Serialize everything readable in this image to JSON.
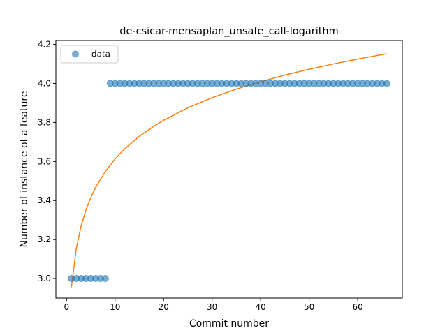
{
  "chart_data": {
    "type": "scatter",
    "title": "de-csicar-mensaplan_unsafe_call-logarithm",
    "xlabel": "Commit number",
    "ylabel": "Number of instance of a feature",
    "xlim": [
      -2.2,
      69.2
    ],
    "ylim": [
      2.9,
      4.22
    ],
    "xticks": [
      0,
      10,
      20,
      30,
      40,
      50,
      60
    ],
    "yticks": [
      3.0,
      3.2,
      3.4,
      3.6,
      3.8,
      4.0,
      4.2
    ],
    "grid": false,
    "legend": {
      "placement": "top-left",
      "entries": [
        "data"
      ]
    },
    "colors": {
      "data": "#1f77b4",
      "fit": "#ff7f0e"
    },
    "series": [
      {
        "name": "data",
        "kind": "scatter",
        "x": [
          1,
          2,
          3,
          4,
          5,
          6,
          7,
          8,
          9,
          10,
          11,
          12,
          13,
          14,
          15,
          16,
          17,
          18,
          19,
          20,
          21,
          22,
          23,
          24,
          25,
          26,
          27,
          28,
          29,
          30,
          31,
          32,
          33,
          34,
          35,
          36,
          37,
          38,
          39,
          40,
          41,
          42,
          43,
          44,
          45,
          46,
          47,
          48,
          49,
          50,
          51,
          52,
          53,
          54,
          55,
          56,
          57,
          58,
          59,
          60,
          61,
          62,
          63,
          64,
          65,
          66
        ],
        "y": [
          3.0,
          3.0,
          3.0,
          3.0,
          3.0,
          3.0,
          3.0,
          3.0,
          4.0,
          4.0,
          4.0,
          4.0,
          4.0,
          4.0,
          4.0,
          4.0,
          4.0,
          4.0,
          4.0,
          4.0,
          4.0,
          4.0,
          4.0,
          4.0,
          4.0,
          4.0,
          4.0,
          4.0,
          4.0,
          4.0,
          4.0,
          4.0,
          4.0,
          4.0,
          4.0,
          4.0,
          4.0,
          4.0,
          4.0,
          4.0,
          4.0,
          4.0,
          4.0,
          4.0,
          4.0,
          4.0,
          4.0,
          4.0,
          4.0,
          4.0,
          4.0,
          4.0,
          4.0,
          4.0,
          4.0,
          4.0,
          4.0,
          4.0,
          4.0,
          4.0,
          4.0,
          4.0,
          4.0,
          4.0,
          4.0,
          4.0
        ]
      },
      {
        "kind": "line",
        "function": "logarithm",
        "x": [
          1,
          2,
          3,
          4,
          5,
          6,
          8,
          10,
          12,
          15,
          18,
          20,
          25,
          30,
          35,
          40,
          45,
          50,
          55,
          60,
          66
        ],
        "y": [
          2.955,
          3.153,
          3.269,
          3.351,
          3.415,
          3.467,
          3.549,
          3.613,
          3.665,
          3.729,
          3.781,
          3.811,
          3.875,
          3.927,
          3.971,
          4.009,
          4.043,
          4.073,
          4.1,
          4.125,
          4.152
        ]
      }
    ]
  }
}
